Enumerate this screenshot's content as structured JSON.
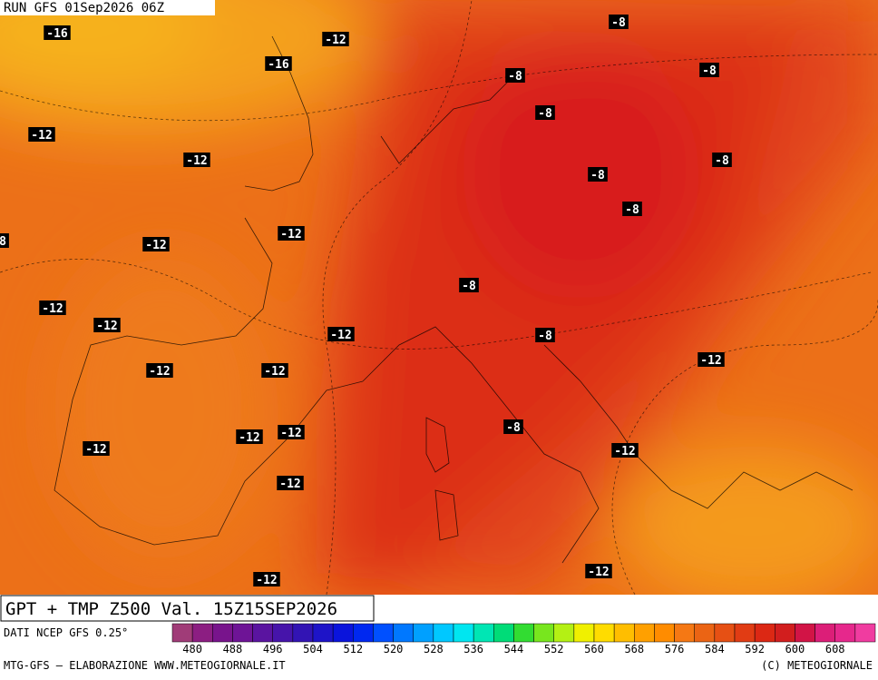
{
  "header": {
    "run": "RUN GFS 01Sep2026 06Z"
  },
  "labels": [
    "-16",
    "-12",
    "-8",
    "-8",
    "-16",
    "-8",
    "-8",
    "-12",
    "-12",
    "-8",
    "-8",
    "-8",
    "-12",
    "-12",
    "8",
    "-12",
    "-12",
    "-8",
    "-12",
    "-8",
    "-12",
    "-12",
    "-12",
    "-12",
    "-12",
    "-8",
    "-12",
    "-12",
    "-12",
    "-12",
    "-12"
  ],
  "footer": {
    "title": "GPT + TMP Z500 Val. 15Z15SEP2026",
    "source": "DATI NCEP GFS 0.25°",
    "credit": "MTG-GFS – ELABORAZIONE WWW.METEOGIORNALE.IT",
    "copyright": "(C) METEOGIORNALE"
  },
  "scale": {
    "colors": [
      "#a03c78",
      "#8c1e82",
      "#78148c",
      "#6e1496",
      "#5a14a0",
      "#4614aa",
      "#3214b4",
      "#1e14c8",
      "#0a14dc",
      "#0028f0",
      "#0050ff",
      "#0078ff",
      "#00a0ff",
      "#00c8ff",
      "#00e6f0",
      "#00e6b4",
      "#00dc78",
      "#32dc32",
      "#78e61e",
      "#b4f014",
      "#f0f000",
      "#ffdc00",
      "#ffbe00",
      "#ffa000",
      "#ff8c00",
      "#f57814",
      "#eb6414",
      "#e65014",
      "#e13c14",
      "#dc2814",
      "#d21e1e",
      "#d21446",
      "#dc1e78",
      "#e6288c",
      "#f03ca0"
    ],
    "ticks": [
      480,
      488,
      496,
      504,
      512,
      520,
      528,
      536,
      544,
      552,
      560,
      568,
      576,
      584,
      592,
      600,
      608
    ]
  }
}
